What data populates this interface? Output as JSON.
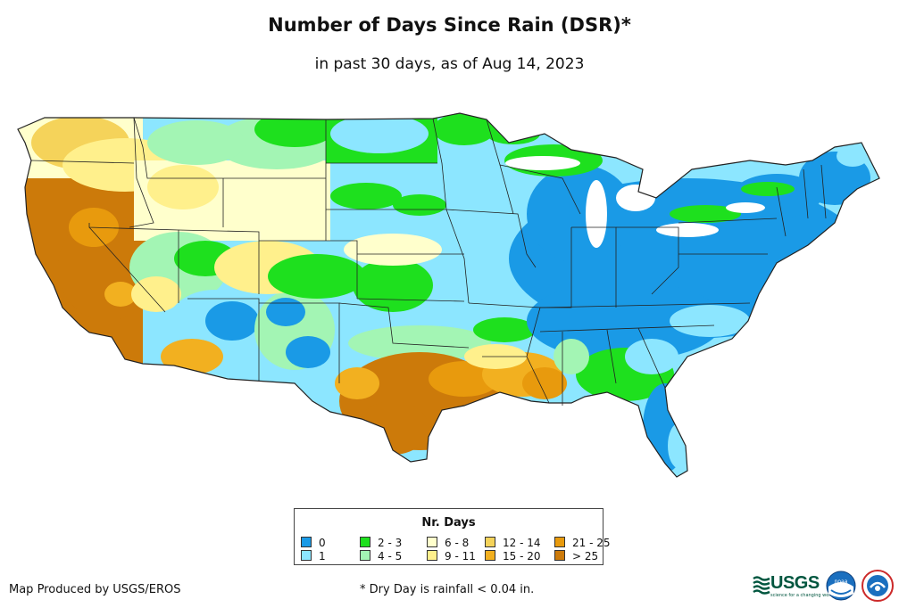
{
  "title": "Number of Days Since Rain (DSR)*",
  "subtitle": "in past 30 days, as of Aug 14, 2023",
  "legend": {
    "title": "Nr. Days",
    "items": [
      {
        "label": "0",
        "color": "#1a9ae6"
      },
      {
        "label": "1",
        "color": "#8ce6ff"
      },
      {
        "label": "2 - 3",
        "color": "#1ee01e"
      },
      {
        "label": "4 - 5",
        "color": "#a3f5b4"
      },
      {
        "label": "6 - 8",
        "color": "#ffffcc"
      },
      {
        "label": "9 - 11",
        "color": "#fff08c"
      },
      {
        "label": "12 - 14",
        "color": "#f5d35a"
      },
      {
        "label": "15 - 20",
        "color": "#f2b020"
      },
      {
        "label": "21 - 25",
        "color": "#e89a0d"
      },
      {
        "label": "> 25",
        "color": "#cc7a0a"
      }
    ]
  },
  "credit": "Map Produced by USGS/EROS",
  "footnote": "* Dry Day is rainfall < 0.04 in.",
  "logos": {
    "usgs": "USGS",
    "usgs_tagline": "science for a changing world",
    "noaa": "noaa",
    "nws": "national weather service"
  },
  "icons": [
    "usgs-logo-icon",
    "noaa-logo-icon",
    "nws-logo-icon"
  ]
}
